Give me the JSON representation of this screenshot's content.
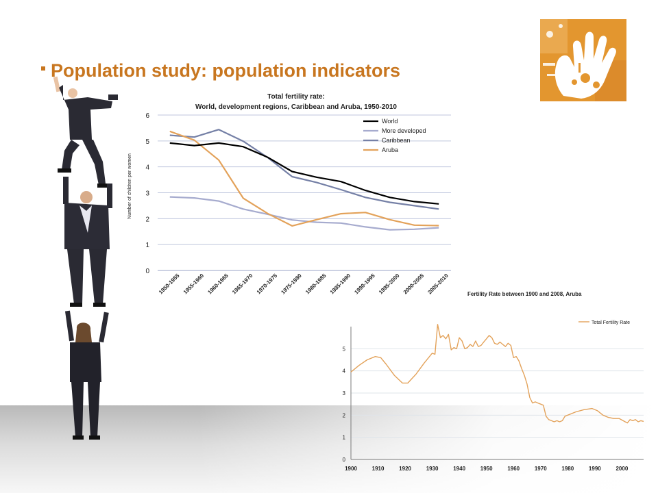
{
  "slide": {
    "title": "Population study: population indicators",
    "accent_color": "#c8761f",
    "logo_icon": "handprint-icon",
    "illustration": "stacked-business-people"
  },
  "chart_data": [
    {
      "type": "line",
      "title": "Total fertility rate:",
      "subtitle": "World, development regions, Caribbean and Aruba, 1950-2010",
      "ylabel": "Number of children per women",
      "xlabel": "",
      "ylim": [
        0,
        6
      ],
      "yticks": [
        0,
        1,
        2,
        3,
        4,
        5,
        6
      ],
      "grid": true,
      "legend": "top-right",
      "categories": [
        "1950-1955",
        "1955-1960",
        "1960-1965",
        "1965-1970",
        "1970-1975",
        "1975-1980",
        "1980-1985",
        "1985-1990",
        "1990-1995",
        "1995-2000",
        "2000-2005",
        "2005-2010"
      ],
      "series": [
        {
          "name": "World",
          "color": "#000000",
          "values": [
            4.92,
            4.82,
            4.92,
            4.78,
            4.37,
            3.82,
            3.6,
            3.43,
            3.09,
            2.82,
            2.66,
            2.57
          ]
        },
        {
          "name": "More developed",
          "color": "#a6abce",
          "values": [
            2.84,
            2.8,
            2.68,
            2.37,
            2.17,
            1.95,
            1.86,
            1.83,
            1.68,
            1.57,
            1.59,
            1.65
          ]
        },
        {
          "name": "Caribbean",
          "color": "#7580a6",
          "values": [
            5.22,
            5.15,
            5.44,
            4.99,
            4.36,
            3.62,
            3.4,
            3.12,
            2.82,
            2.63,
            2.5,
            2.37
          ]
        },
        {
          "name": "Aruba",
          "color": "#e3a25a",
          "values": [
            5.37,
            5.03,
            4.26,
            2.79,
            2.2,
            1.72,
            1.96,
            2.19,
            2.24,
            1.96,
            1.75,
            1.73
          ]
        }
      ]
    },
    {
      "type": "line",
      "title": "Fertility Rate between 1900 and 2008, Aruba",
      "xlabel": "",
      "ylabel": "",
      "xlim": [
        1900,
        2008
      ],
      "ylim": [
        0,
        6
      ],
      "xticks": [
        1900,
        1910,
        1920,
        1930,
        1940,
        1950,
        1960,
        1970,
        1980,
        1990,
        2000
      ],
      "yticks": [
        0,
        1,
        2,
        3,
        4,
        5
      ],
      "grid": true,
      "legend": "top-right",
      "series": [
        {
          "name": "Total Fertility Rate",
          "color": "#e3a25a",
          "x": [
            1900,
            1903,
            1906,
            1909,
            1911,
            1913,
            1916,
            1919,
            1921,
            1924,
            1927,
            1930,
            1931,
            1932,
            1933,
            1934,
            1935,
            1936,
            1937,
            1938,
            1939,
            1940,
            1941,
            1942,
            1943,
            1944,
            1945,
            1946,
            1947,
            1948,
            1949,
            1950,
            1951,
            1952,
            1953,
            1954,
            1955,
            1956,
            1957,
            1958,
            1959,
            1960,
            1961,
            1962,
            1963,
            1964,
            1965,
            1966,
            1967,
            1968,
            1969,
            1970,
            1971,
            1972,
            1973,
            1974,
            1975,
            1976,
            1977,
            1978,
            1979,
            1980,
            1983,
            1986,
            1989,
            1991,
            1993,
            1995,
            1997,
            1999,
            2002,
            2003,
            2004,
            2005,
            2006,
            2007,
            2008
          ],
          "y": [
            3.95,
            4.25,
            4.5,
            4.65,
            4.6,
            4.3,
            3.8,
            3.45,
            3.45,
            3.85,
            4.35,
            4.8,
            4.75,
            6.1,
            5.5,
            5.6,
            5.45,
            5.65,
            4.95,
            5.05,
            5.0,
            5.5,
            5.35,
            5.0,
            5.05,
            5.2,
            5.1,
            5.35,
            5.1,
            5.15,
            5.3,
            5.45,
            5.6,
            5.5,
            5.25,
            5.2,
            5.3,
            5.2,
            5.1,
            5.25,
            5.15,
            4.6,
            4.65,
            4.45,
            4.1,
            3.8,
            3.4,
            2.8,
            2.55,
            2.6,
            2.55,
            2.5,
            2.45,
            1.95,
            1.8,
            1.75,
            1.7,
            1.75,
            1.7,
            1.75,
            1.95,
            2.0,
            2.15,
            2.25,
            2.3,
            2.2,
            2.0,
            1.9,
            1.85,
            1.85,
            1.65,
            1.8,
            1.75,
            1.8,
            1.7,
            1.75,
            1.72
          ]
        }
      ]
    }
  ]
}
